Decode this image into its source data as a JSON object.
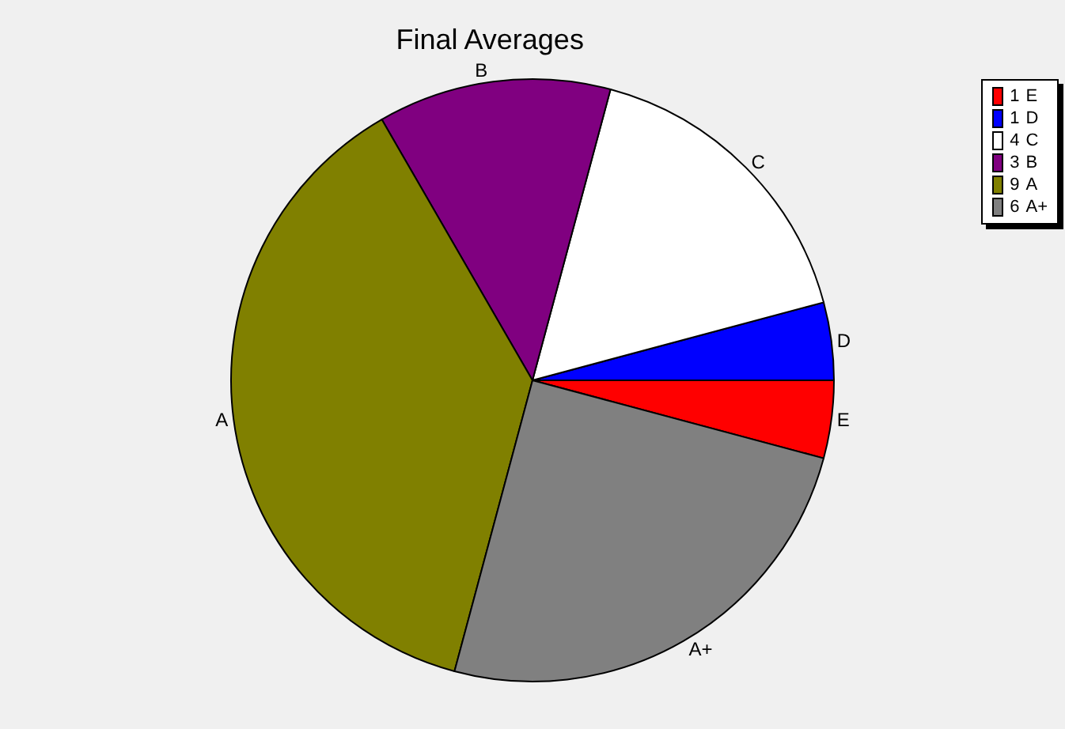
{
  "chart_data": {
    "type": "pie",
    "title": "Final Averages",
    "categories": [
      "E",
      "D",
      "C",
      "B",
      "A",
      "A+"
    ],
    "values": [
      1,
      1,
      4,
      3,
      9,
      6
    ],
    "value_labels": [
      "1",
      "1",
      "4",
      "3",
      "9",
      "6"
    ],
    "colors": [
      "#ff0000",
      "#0000ff",
      "#ffffff",
      "#800080",
      "#808000",
      "#808080"
    ],
    "legend": "top right"
  }
}
